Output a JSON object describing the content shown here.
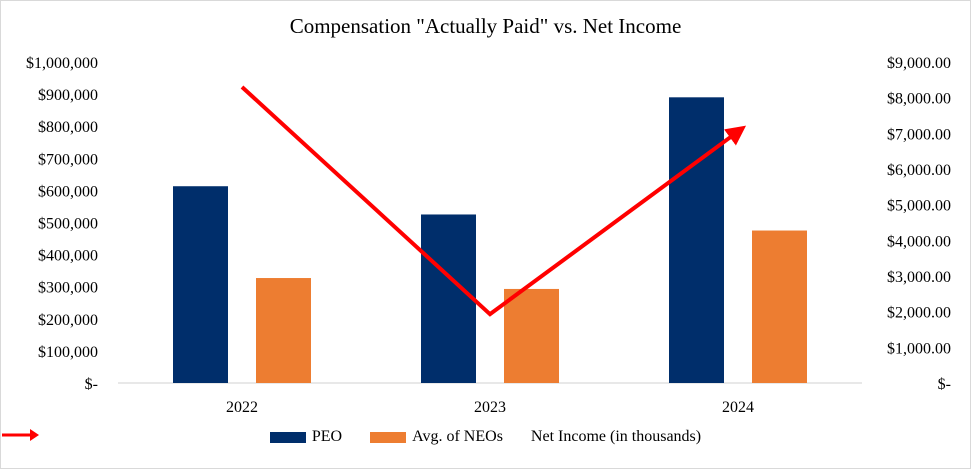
{
  "chart_data": {
    "type": "bar",
    "title": "Compensation \"Actually Paid\" vs. Net Income",
    "categories": [
      "2022",
      "2023",
      "2024"
    ],
    "series": [
      {
        "name": "PEO",
        "type": "bar",
        "axis": "left",
        "color": "#002e6b",
        "values": [
          613000,
          525000,
          890000
        ]
      },
      {
        "name": "Avg. of NEOs",
        "type": "bar",
        "axis": "left",
        "color": "#ed7d31",
        "values": [
          327000,
          293000,
          475000
        ]
      },
      {
        "name": "Net Income (in thousands)",
        "type": "line",
        "axis": "right",
        "color": "#ff0000",
        "values": [
          8300,
          1930,
          7050
        ]
      }
    ],
    "left_axis": {
      "ylim": [
        0,
        1000000
      ],
      "ticks": [
        0,
        100000,
        200000,
        300000,
        400000,
        500000,
        600000,
        700000,
        800000,
        900000,
        1000000
      ],
      "tick_labels": [
        "$-",
        "$100,000",
        "$200,000",
        "$300,000",
        "$400,000",
        "$500,000",
        "$600,000",
        "$700,000",
        "$800,000",
        "$900,000",
        "$1,000,000"
      ]
    },
    "right_axis": {
      "ylim": [
        0,
        9000
      ],
      "ticks": [
        0,
        1000,
        2000,
        3000,
        4000,
        5000,
        6000,
        7000,
        8000,
        9000
      ],
      "tick_labels": [
        "$-",
        "$1,000.00",
        "$2,000.00",
        "$3,000.00",
        "$4,000.00",
        "$5,000.00",
        "$6,000.00",
        "$7,000.00",
        "$8,000.00",
        "$9,000.00"
      ]
    },
    "grid": false,
    "legend": "bottom"
  }
}
